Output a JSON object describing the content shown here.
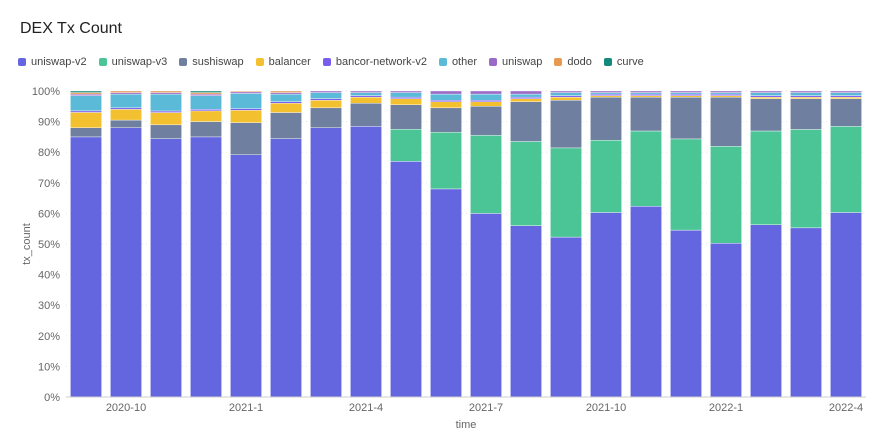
{
  "chart_data": {
    "type": "bar",
    "stacked": true,
    "normalized": true,
    "title": "DEX Tx Count",
    "xlabel": "time",
    "ylabel": "tx_count",
    "ylim": [
      0,
      100
    ],
    "y_ticks": [
      "0%",
      "10%",
      "20%",
      "30%",
      "40%",
      "50%",
      "60%",
      "70%",
      "80%",
      "90%",
      "100%"
    ],
    "x_ticks": [
      {
        "label": "2020-10",
        "index": 1
      },
      {
        "label": "2021-1",
        "index": 4
      },
      {
        "label": "2021-4",
        "index": 7
      },
      {
        "label": "2021-7",
        "index": 10
      },
      {
        "label": "2021-10",
        "index": 13
      },
      {
        "label": "2022-1",
        "index": 16
      },
      {
        "label": "2022-4",
        "index": 19
      }
    ],
    "categories": [
      "2020-09",
      "2020-10",
      "2020-11",
      "2020-12",
      "2021-01",
      "2021-02",
      "2021-03",
      "2021-04",
      "2021-05",
      "2021-06",
      "2021-07",
      "2021-08",
      "2021-09",
      "2021-10",
      "2021-11",
      "2021-12",
      "2022-01",
      "2022-02",
      "2022-03",
      "2022-04"
    ],
    "series": [
      {
        "name": "uniswap-v2",
        "color": "#6466E0",
        "values": [
          85,
          88,
          84,
          85,
          79,
          84,
          88,
          88,
          77,
          68,
          60,
          56,
          52,
          60,
          62,
          54,
          50,
          56,
          55,
          60
        ]
      },
      {
        "name": "uniswap-v3",
        "color": "#4BC596",
        "values": [
          0,
          0,
          0,
          0,
          0,
          0,
          0,
          0,
          10.5,
          18.5,
          25.5,
          27.5,
          29,
          23.5,
          24.5,
          29.5,
          31.5,
          30.5,
          32,
          28
        ]
      },
      {
        "name": "sushiswap",
        "color": "#6E7F9F",
        "values": [
          3,
          2.5,
          4.5,
          5,
          10.5,
          8.5,
          6.5,
          7.5,
          8,
          8,
          9.5,
          13,
          15.5,
          14,
          11,
          13.5,
          16,
          10.5,
          10,
          9
        ]
      },
      {
        "name": "balancer",
        "color": "#F3C12F",
        "values": [
          5,
          3.5,
          4,
          3.5,
          4,
          3,
          2.5,
          2,
          2,
          2,
          1.5,
          1,
          1,
          0.5,
          0.5,
          0.5,
          0.5,
          0.5,
          0.5,
          0.5
        ]
      },
      {
        "name": "bancor-network-v2",
        "color": "#7A5CF0",
        "values": [
          0.5,
          0.5,
          0.5,
          0.5,
          0.5,
          0.5,
          0.5,
          0.5,
          0.5,
          0.5,
          0.5,
          0.5,
          0.5,
          0.5,
          0.5,
          0.5,
          0.5,
          0.5,
          0.5,
          0.5
        ]
      },
      {
        "name": "other",
        "color": "#5BBAD8",
        "values": [
          5,
          4.5,
          5.5,
          4.5,
          5,
          2.5,
          2,
          1,
          1.5,
          2,
          2,
          1,
          1,
          0.5,
          0.5,
          0.5,
          0.5,
          1,
          1,
          1
        ]
      },
      {
        "name": "uniswap",
        "color": "#9B6AC8",
        "values": [
          0.5,
          0.5,
          0.5,
          0.5,
          0.5,
          0.5,
          0.5,
          0.5,
          0.5,
          1,
          1,
          1,
          0.5,
          0.5,
          0.5,
          0.5,
          0.5,
          0.5,
          0.5,
          0.5
        ]
      },
      {
        "name": "dodo",
        "color": "#E89A50",
        "values": [
          0.5,
          0.5,
          0.5,
          0.5,
          0.3,
          0.5,
          0,
          0,
          0,
          0,
          0,
          0,
          0,
          0,
          0,
          0,
          0,
          0,
          0,
          0
        ]
      },
      {
        "name": "curve",
        "color": "#138A7C",
        "values": [
          0.5,
          0,
          0,
          0.5,
          0,
          0,
          0,
          0,
          0,
          0,
          0,
          0,
          0,
          0,
          0,
          0,
          0,
          0,
          0,
          0
        ]
      }
    ]
  }
}
